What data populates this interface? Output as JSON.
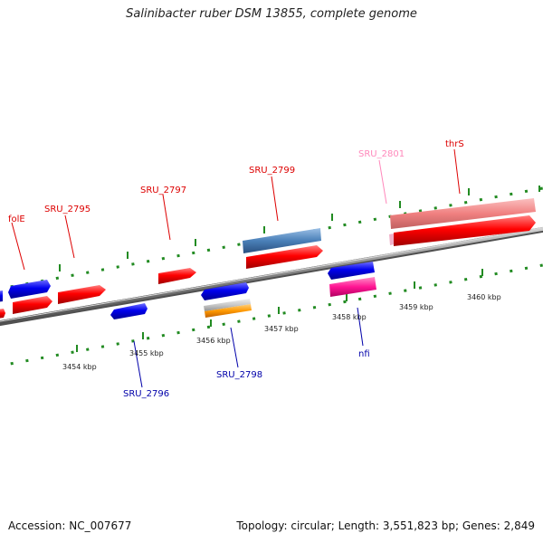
{
  "title": "Salinibacter ruber DSM 13855, complete genome",
  "footer": {
    "accession": "Accession: NC_007677",
    "topology": "Topology: circular; Length: 3,551,823 bp; Genes: 2,849"
  },
  "scale_labels": [
    "3454 kbp",
    "3455 kbp",
    "3456 kbp",
    "3457 kbp",
    "3458 kbp",
    "3459 kbp",
    "3460 kbp"
  ],
  "gene_labels": {
    "folE": "folE",
    "sru2795": "SRU_2795",
    "sru2796": "SRU_2796",
    "sru2797": "SRU_2797",
    "sru2798": "SRU_2798",
    "sru2799": "SRU_2799",
    "sru2801": "SRU_2801",
    "nfi": "nfi",
    "thrS": "thrS"
  },
  "colors": {
    "forward_cds": "#ff0000",
    "reverse_cds": "#0000ee",
    "forward_label": "#dd0000",
    "reverse_label": "#0000aa",
    "pseudo_pink": "#f08080",
    "pseudo_label": "#ff88bb",
    "steelblue": "#4a80b8",
    "magenta": "#ff1493",
    "orange": "#ff9900",
    "gray_gene": "#c8c8c8",
    "backbone": "#808080",
    "ticks": "#228b22"
  }
}
